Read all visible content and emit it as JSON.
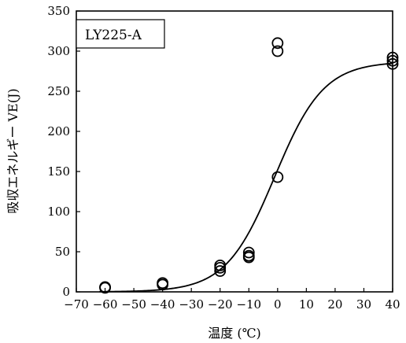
{
  "chart_data": {
    "type": "scatter",
    "title": "",
    "legend_label": "LY225-A",
    "legend_position": "top-left",
    "xlabel": "温度 (℃)",
    "ylabel": "吸収エネルギー VE(J)",
    "xlim": [
      -70,
      40
    ],
    "ylim": [
      0,
      350
    ],
    "x_ticks": [
      -70,
      -60,
      -50,
      -40,
      -30,
      -20,
      -10,
      0,
      10,
      20,
      30,
      40
    ],
    "y_ticks": [
      0,
      50,
      100,
      150,
      200,
      250,
      300,
      350
    ],
    "grid": false,
    "points": [
      {
        "x": -60,
        "y": 5
      },
      {
        "x": -60,
        "y": 6
      },
      {
        "x": -40,
        "y": 9
      },
      {
        "x": -40,
        "y": 11
      },
      {
        "x": -20,
        "y": 26
      },
      {
        "x": -20,
        "y": 30
      },
      {
        "x": -20,
        "y": 33
      },
      {
        "x": -10,
        "y": 43
      },
      {
        "x": -10,
        "y": 45
      },
      {
        "x": -10,
        "y": 49
      },
      {
        "x": 0,
        "y": 143
      },
      {
        "x": 0,
        "y": 300
      },
      {
        "x": 0,
        "y": 310
      },
      {
        "x": 40,
        "y": 284
      },
      {
        "x": 40,
        "y": 288
      },
      {
        "x": 40,
        "y": 292
      }
    ],
    "fit_curve": {
      "type": "tanh",
      "lower_shelf": 0,
      "upper_shelf": 287,
      "midpoint": -1,
      "width": 17
    }
  }
}
